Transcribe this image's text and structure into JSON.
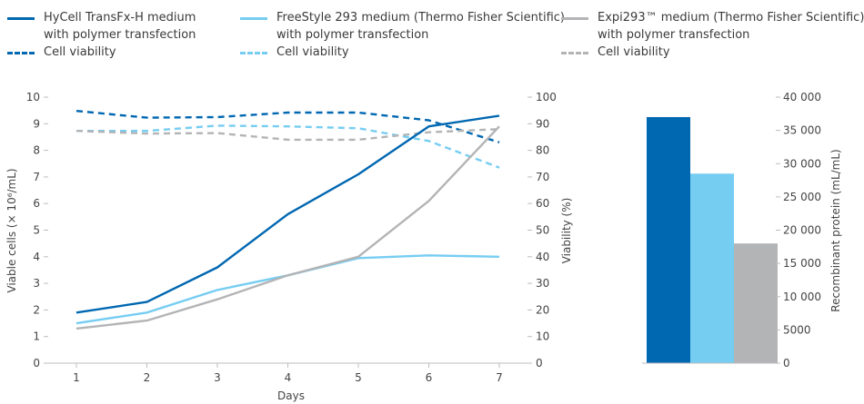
{
  "colors": {
    "hycell": "#0067b1",
    "freestyle": "#76cdf2",
    "expi": "#b3b4b6",
    "axis": "#bdbdbd",
    "text": "#444444"
  },
  "legend": [
    {
      "series": "hycell",
      "style": "solid",
      "line1": "HyCell TransFx-H medium",
      "line2": "with polymer transfection"
    },
    {
      "series": "freestyle",
      "style": "solid",
      "line1": "FreeStyle 293 medium (Thermo Fisher Scientific)",
      "line2": "with polymer transfection"
    },
    {
      "series": "expi",
      "style": "solid",
      "line1": "Expi293™ medium (Thermo Fisher Scientific)",
      "line2": "with polymer transfection"
    },
    {
      "series": "hycell",
      "style": "dashed",
      "line1": "Cell viability",
      "line2": ""
    },
    {
      "series": "freestyle",
      "style": "dashed",
      "line1": "Cell viability",
      "line2": ""
    },
    {
      "series": "expi",
      "style": "dashed",
      "line1": "Cell viability",
      "line2": ""
    }
  ],
  "chart_data": [
    {
      "type": "line",
      "x": [
        1,
        2,
        3,
        4,
        5,
        6,
        7
      ],
      "xlabel": "Days",
      "ylabel": "Viable cells (× 10⁶/mL)",
      "ylim": [
        0,
        10
      ],
      "yticks": [
        "0",
        "1",
        "2",
        "3",
        "4",
        "5",
        "6",
        "7",
        "8",
        "9",
        "10"
      ],
      "y2label": "Viability (%)",
      "y2lim": [
        0,
        100
      ],
      "y2ticks": [
        "0",
        "10",
        "20",
        "30",
        "40",
        "50",
        "60",
        "70",
        "80",
        "90",
        "100"
      ],
      "grid": false,
      "series": [
        {
          "name": "HyCell TransFx-H medium with polymer transfection",
          "color_key": "hycell",
          "axis": "left",
          "dashed": false,
          "values": [
            1.9,
            2.3,
            3.6,
            5.6,
            7.1,
            8.9,
            9.3
          ]
        },
        {
          "name": "FreeStyle 293 medium (Thermo Fisher Scientific) with polymer transfection",
          "color_key": "freestyle",
          "axis": "left",
          "dashed": false,
          "values": [
            1.5,
            1.9,
            2.75,
            3.3,
            3.95,
            4.05,
            4.0
          ]
        },
        {
          "name": "Expi293™ medium (Thermo Fisher Scientific) with polymer transfection",
          "color_key": "expi",
          "axis": "left",
          "dashed": false,
          "values": [
            1.3,
            1.6,
            2.4,
            3.3,
            4.0,
            6.1,
            8.9
          ]
        },
        {
          "name": "Cell viability",
          "color_key": "hycell",
          "axis": "right",
          "dashed": true,
          "values": [
            94.8,
            92.3,
            92.5,
            94.2,
            94.2,
            91.3,
            83.0
          ]
        },
        {
          "name": "Cell viability",
          "color_key": "freestyle",
          "axis": "right",
          "dashed": true,
          "values": [
            87.3,
            87.3,
            89.3,
            89.0,
            88.3,
            83.5,
            73.5
          ]
        },
        {
          "name": "Cell viability",
          "color_key": "expi",
          "axis": "right",
          "dashed": true,
          "values": [
            87.3,
            86.3,
            86.5,
            84.0,
            84.0,
            86.8,
            88.0
          ]
        }
      ]
    },
    {
      "type": "bar",
      "categories": [
        "HyCell TransFx-H medium",
        "FreeStyle 293 medium",
        "Expi293™ medium"
      ],
      "values": [
        37000,
        28500,
        18000
      ],
      "color_keys": [
        "hycell",
        "freestyle",
        "expi"
      ],
      "ylabel": "Recombinant protein (mL/mL)",
      "ylim": [
        0,
        40000
      ],
      "yticks": [
        "0",
        "5000",
        "10 000",
        "15 000",
        "20 000",
        "25 000",
        "30 000",
        "35 000",
        "40 000"
      ],
      "grid": false
    }
  ]
}
